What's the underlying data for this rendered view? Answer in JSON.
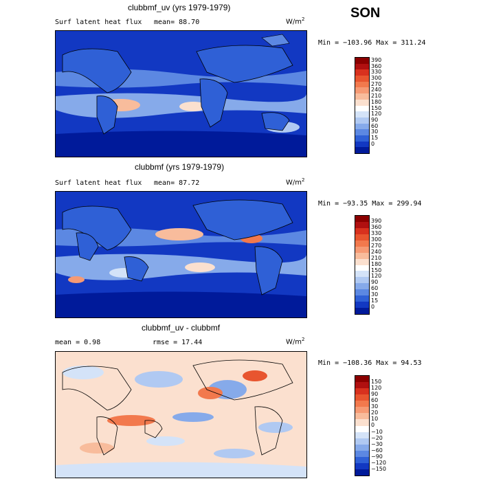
{
  "season": "SON",
  "units": {
    "base": "W/m",
    "exp": "2"
  },
  "panels": [
    {
      "title": "clubbmf_uv (yrs 1979-1979)",
      "left": "Surf latent heat flux",
      "stat": "mean=   88.70",
      "range": "Min = −103.96  Max = 311.24",
      "colorbar": {
        "labels": [
          "390",
          "360",
          "330",
          "300",
          "270",
          "240",
          "210",
          "180",
          "150",
          "120",
          "90",
          "60",
          "30",
          "15",
          "0"
        ],
        "colors": [
          "#8b0000",
          "#b01010",
          "#d8311e",
          "#e8552f",
          "#f2794d",
          "#f69a74",
          "#f8bc9c",
          "#fbe0cf",
          "#ffffff",
          "#d4e3f8",
          "#b0c9f2",
          "#86aaea",
          "#5c88e2",
          "#2f60d6",
          "#1238c2",
          "#001a9a"
        ]
      }
    },
    {
      "title": "clubbmf (yrs 1979-1979)",
      "left": "Surf latent heat flux",
      "stat": "mean=   87.72",
      "range": "Min = −93.35  Max = 299.94",
      "colorbar": {
        "labels": [
          "390",
          "360",
          "330",
          "300",
          "270",
          "240",
          "210",
          "180",
          "150",
          "120",
          "90",
          "60",
          "30",
          "15",
          "0"
        ],
        "colors": [
          "#8b0000",
          "#b01010",
          "#d8311e",
          "#e8552f",
          "#f2794d",
          "#f69a74",
          "#f8bc9c",
          "#fbe0cf",
          "#ffffff",
          "#d4e3f8",
          "#b0c9f2",
          "#86aaea",
          "#5c88e2",
          "#2f60d6",
          "#1238c2",
          "#001a9a"
        ]
      }
    },
    {
      "title": "clubbmf_uv - clubbmf",
      "left": "mean =    0.98",
      "stat": "rmse =   17.44",
      "range": "Min = −108.36  Max =  94.53",
      "colorbar": {
        "labels": [
          "150",
          "120",
          "90",
          "60",
          "30",
          "20",
          "10",
          "0",
          "−10",
          "−20",
          "−30",
          "−60",
          "−90",
          "−120",
          "−150"
        ],
        "colors": [
          "#8b0000",
          "#b01010",
          "#d8311e",
          "#e8552f",
          "#f2794d",
          "#f69a74",
          "#f8bc9c",
          "#fbe0cf",
          "#ffffff",
          "#d4e3f8",
          "#b0c9f2",
          "#86aaea",
          "#5c88e2",
          "#2f60d6",
          "#1238c2",
          "#001a9a"
        ]
      }
    }
  ]
}
